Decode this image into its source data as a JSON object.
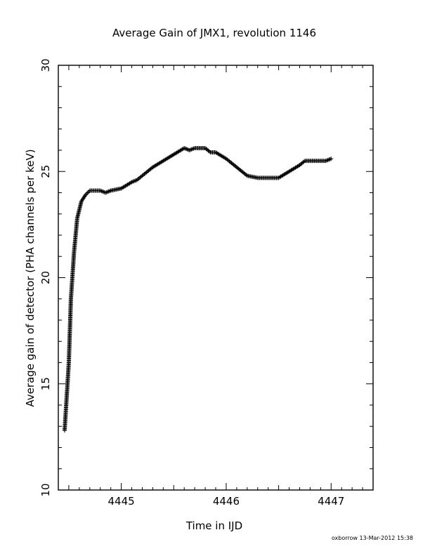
{
  "chart_data": {
    "type": "scatter",
    "title": "Average Gain of JMX1, revolution 1146",
    "xlabel": "Time in IJD",
    "ylabel": "Average gain of detector (PHA channels per keV)",
    "xlim": [
      4444.4,
      4447.4
    ],
    "ylim": [
      10,
      30
    ],
    "xticks": [
      4445,
      4446,
      4447
    ],
    "yticks": [
      10,
      15,
      20,
      25,
      30
    ],
    "marker": "+",
    "grid": false,
    "series": [
      {
        "x": [
          4444.46,
          4444.5,
          4444.52,
          4444.55,
          4444.58,
          4444.62,
          4444.66,
          4444.7,
          4444.75,
          4444.8,
          4444.85,
          4444.9,
          4445.0,
          4445.1,
          4445.15,
          4445.2,
          4445.25,
          4445.3,
          4445.4,
          4445.5,
          4445.6,
          4445.65,
          4445.7,
          4445.75,
          4445.8,
          4445.85,
          4445.9,
          4446.0,
          4446.1,
          4446.2,
          4446.3,
          4446.4,
          4446.5,
          4446.6,
          4446.7,
          4446.75,
          4446.8,
          4446.85,
          4446.9,
          4446.95,
          4447.0
        ],
        "y": [
          12.8,
          16.0,
          19.0,
          21.2,
          22.8,
          23.6,
          23.9,
          24.1,
          24.1,
          24.1,
          24.0,
          24.1,
          24.2,
          24.5,
          24.6,
          24.8,
          25.0,
          25.2,
          25.5,
          25.8,
          26.1,
          26.0,
          26.1,
          26.1,
          26.1,
          25.9,
          25.9,
          25.6,
          25.2,
          24.8,
          24.7,
          24.7,
          24.7,
          25.0,
          25.3,
          25.5,
          25.5,
          25.5,
          25.5,
          25.5,
          25.6
        ]
      }
    ]
  },
  "footer": "oxborrow 13-Mar-2012 15:38"
}
